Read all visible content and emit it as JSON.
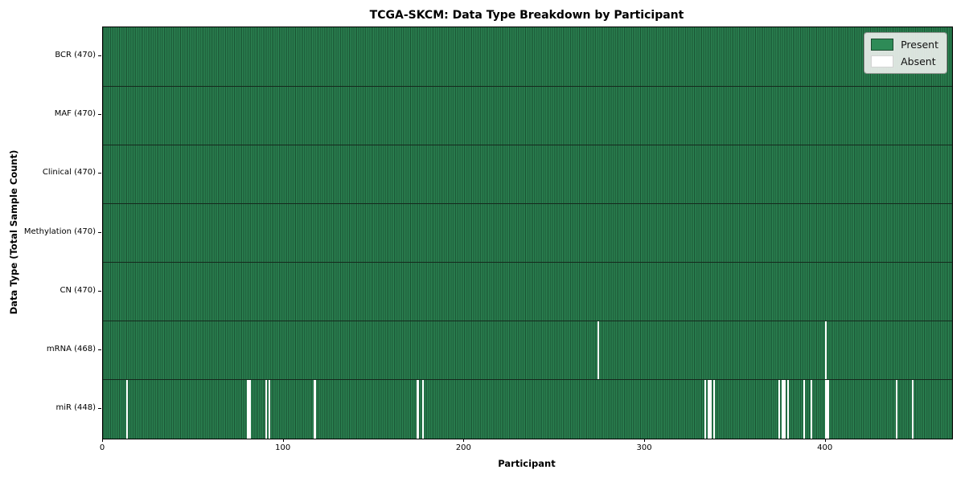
{
  "chart_data": {
    "type": "heatmap",
    "title": "TCGA-SKCM: Data Type Breakdown by Participant",
    "xlabel": "Participant",
    "ylabel": "Data Type (Total Sample Count)",
    "x_ticks": [
      0,
      100,
      200,
      300,
      400
    ],
    "x_range": [
      0,
      470
    ],
    "n_participants": 470,
    "grid": "cell-edges",
    "legend_position": "upper-right",
    "legend": [
      {
        "label": "Present",
        "color": "#2e8b57",
        "border": "#1a4a2e"
      },
      {
        "label": "Absent",
        "color": "#ffffff",
        "border": "#d4d4d4"
      }
    ],
    "rows": [
      {
        "label": "BCR (470)",
        "data_type": "BCR",
        "present_count": 470,
        "absent_participants": []
      },
      {
        "label": "MAF (470)",
        "data_type": "MAF",
        "present_count": 470,
        "absent_participants": []
      },
      {
        "label": "Clinical (470)",
        "data_type": "Clinical",
        "present_count": 470,
        "absent_participants": []
      },
      {
        "label": "Methylation (470)",
        "data_type": "Methylation",
        "present_count": 470,
        "absent_participants": []
      },
      {
        "label": "CN (470)",
        "data_type": "CN",
        "present_count": 470,
        "absent_participants": []
      },
      {
        "label": "mRNA (468)",
        "data_type": "mRNA",
        "present_count": 468,
        "absent_participants": [
          274,
          400
        ]
      },
      {
        "label": "miR (448)",
        "data_type": "miR",
        "present_count": 448,
        "absent_participants": [
          13,
          80,
          81,
          90,
          92,
          117,
          174,
          177,
          333,
          335,
          336,
          338,
          374,
          376,
          377,
          379,
          388,
          392,
          400,
          401,
          439,
          448
        ]
      }
    ]
  },
  "colors": {
    "present": "#2e8b57",
    "cell_edge": "#16482c",
    "absent": "#ffffff",
    "row_border": "#15291d",
    "axis": "#000000",
    "legend_bg": "#eaeeea",
    "legend_border": "#8f948f",
    "background": "#ffffff"
  }
}
